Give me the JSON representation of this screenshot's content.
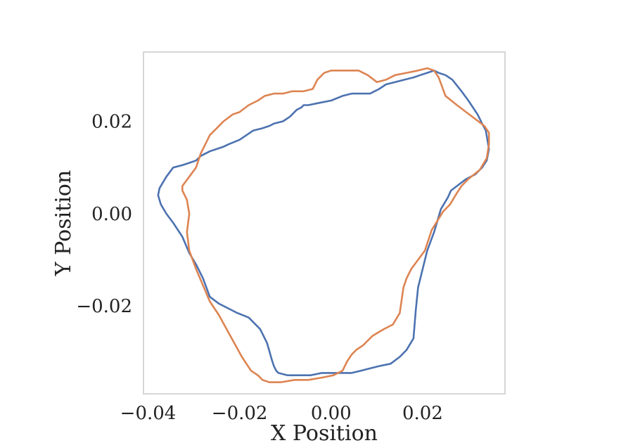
{
  "chart_data": {
    "type": "line",
    "title": "",
    "xlabel": "X Position",
    "ylabel": "Y Position",
    "xlim": [
      -0.041,
      0.038
    ],
    "ylim": [
      -0.039,
      0.035
    ],
    "grid": false,
    "xticks": [
      {
        "value": -0.04,
        "label": "−0.04"
      },
      {
        "value": -0.02,
        "label": "−0.02"
      },
      {
        "value": 0.0,
        "label": "0.00"
      },
      {
        "value": 0.02,
        "label": "0.02"
      }
    ],
    "yticks": [
      {
        "value": 0.02,
        "label": "0.02"
      },
      {
        "value": 0.0,
        "label": "0.00"
      },
      {
        "value": -0.02,
        "label": "−0.02"
      }
    ],
    "series": [
      {
        "color": "#4c72b0",
        "x": [
          -0.0375,
          -0.036,
          -0.0345,
          -0.0325,
          -0.031,
          -0.0295,
          -0.0285,
          -0.0265,
          -0.025,
          -0.0235,
          -0.0225,
          -0.02,
          -0.0185,
          -0.017,
          -0.015,
          -0.0135,
          -0.0125,
          -0.0105,
          -0.009,
          -0.0075,
          -0.0065,
          -0.006,
          -0.005,
          -0.0025,
          0.0,
          0.0025,
          0.0045,
          0.0065,
          0.0085,
          0.0095,
          0.0105,
          0.012,
          0.014,
          0.016,
          0.018,
          0.0195,
          0.021,
          0.0225,
          0.0235,
          0.025,
          0.0265,
          0.0285,
          0.03,
          0.032,
          0.033,
          0.0338,
          0.0345,
          0.034,
          0.033,
          0.0315,
          0.0295,
          0.0275,
          0.0262,
          0.0255,
          0.024,
          0.0225,
          0.021,
          0.02,
          0.019,
          0.0185,
          0.018,
          0.0165,
          0.015,
          0.013,
          0.0105,
          0.0085,
          0.0065,
          0.0045,
          0.002,
          0.0,
          -0.002,
          -0.0045,
          -0.007,
          -0.0095,
          -0.0115,
          -0.012,
          -0.0125,
          -0.013,
          -0.014,
          -0.0155,
          -0.018,
          -0.0205,
          -0.0225,
          -0.0245,
          -0.0265,
          -0.028,
          -0.0295,
          -0.031,
          -0.0325,
          -0.0345,
          -0.036,
          -0.0372,
          -0.0378,
          -0.0375
        ],
        "y": [
          0.0055,
          0.008,
          0.01,
          0.0105,
          0.011,
          0.0115,
          0.0125,
          0.0135,
          0.014,
          0.0145,
          0.015,
          0.016,
          0.017,
          0.018,
          0.0185,
          0.019,
          0.0195,
          0.02,
          0.021,
          0.0225,
          0.023,
          0.0235,
          0.0235,
          0.024,
          0.0245,
          0.0255,
          0.026,
          0.026,
          0.026,
          0.0265,
          0.027,
          0.028,
          0.0285,
          0.029,
          0.0295,
          0.03,
          0.0305,
          0.031,
          0.0305,
          0.03,
          0.029,
          0.0265,
          0.0245,
          0.0215,
          0.0195,
          0.018,
          0.014,
          0.0115,
          0.01,
          0.0085,
          0.0075,
          0.006,
          0.005,
          0.0035,
          0.001,
          -0.004,
          -0.008,
          -0.012,
          -0.016,
          -0.021,
          -0.027,
          -0.0295,
          -0.031,
          -0.0325,
          -0.033,
          -0.0335,
          -0.034,
          -0.0345,
          -0.0345,
          -0.0345,
          -0.0345,
          -0.035,
          -0.035,
          -0.035,
          -0.0345,
          -0.034,
          -0.033,
          -0.0315,
          -0.028,
          -0.025,
          -0.0225,
          -0.0215,
          -0.0205,
          -0.0195,
          -0.018,
          -0.014,
          -0.011,
          -0.0085,
          -0.005,
          -0.002,
          0.0,
          0.002,
          0.004,
          0.0055
        ]
      },
      {
        "color": "#dd8452",
        "x": [
          -0.0295,
          -0.0285,
          -0.0275,
          -0.0265,
          -0.025,
          -0.0235,
          -0.0215,
          -0.02,
          -0.018,
          -0.016,
          -0.0145,
          -0.0125,
          -0.0105,
          -0.0085,
          -0.006,
          -0.004,
          -0.003,
          -0.0015,
          0.0,
          0.002,
          0.006,
          0.008,
          0.01,
          0.012,
          0.014,
          0.0165,
          0.019,
          0.021,
          0.0225,
          0.0235,
          0.025,
          0.0275,
          0.0295,
          0.0315,
          0.0335,
          0.0345,
          0.0345,
          0.034,
          0.0325,
          0.03,
          0.0285,
          0.0275,
          0.026,
          0.0245,
          0.022,
          0.0205,
          0.019,
          0.0175,
          0.0165,
          0.0158,
          0.015,
          0.0135,
          0.0115,
          0.009,
          0.007,
          0.0055,
          0.0045,
          0.0035,
          0.0025,
          0.0005,
          -0.002,
          -0.005,
          -0.008,
          -0.011,
          -0.0135,
          -0.015,
          -0.016,
          -0.0175,
          -0.0195,
          -0.022,
          -0.0245,
          -0.0265,
          -0.028,
          -0.0295,
          -0.031,
          -0.0315,
          -0.031,
          -0.0315,
          -0.0325,
          -0.0325,
          -0.031,
          -0.0295
        ],
        "y": [
          0.01,
          0.013,
          0.015,
          0.017,
          0.0185,
          0.02,
          0.0215,
          0.022,
          0.0235,
          0.0245,
          0.0255,
          0.026,
          0.026,
          0.0265,
          0.0265,
          0.027,
          0.029,
          0.0305,
          0.031,
          0.031,
          0.031,
          0.03,
          0.0285,
          0.029,
          0.03,
          0.0305,
          0.031,
          0.0315,
          0.031,
          0.0295,
          0.0255,
          0.0235,
          0.022,
          0.0205,
          0.019,
          0.0175,
          0.015,
          0.012,
          0.0095,
          0.0075,
          0.006,
          0.0045,
          0.002,
          0.0005,
          -0.0035,
          -0.008,
          -0.01,
          -0.012,
          -0.014,
          -0.016,
          -0.0215,
          -0.024,
          -0.025,
          -0.0265,
          -0.0285,
          -0.0295,
          -0.0305,
          -0.032,
          -0.034,
          -0.035,
          -0.0355,
          -0.036,
          -0.036,
          -0.0365,
          -0.0365,
          -0.036,
          -0.035,
          -0.034,
          -0.031,
          -0.0265,
          -0.022,
          -0.019,
          -0.0155,
          -0.012,
          -0.008,
          -0.004,
          0.0,
          0.003,
          0.005,
          0.006,
          0.008,
          0.01
        ]
      }
    ]
  }
}
